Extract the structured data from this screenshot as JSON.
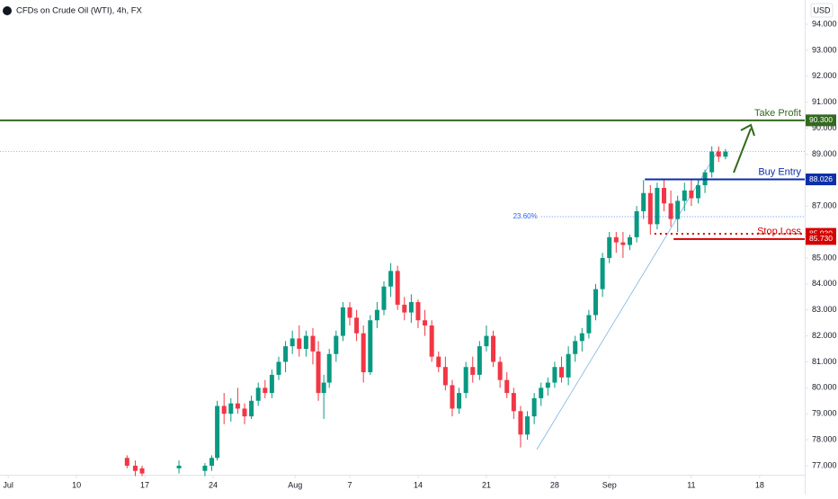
{
  "chart_data": {
    "type": "candlestick",
    "title": "CFDs on Crude Oil (WTI), 4h, FX",
    "currency": "USD",
    "up_color": "#089981",
    "down_color": "#f23645",
    "xlim": [
      -0.6,
      58.3
    ],
    "ylim": [
      76.6,
      94.5
    ],
    "xticks": [
      {
        "value": 0,
        "label": "Jul"
      },
      {
        "value": 5,
        "label": "10"
      },
      {
        "value": 10,
        "label": "17"
      },
      {
        "value": 15,
        "label": "24"
      },
      {
        "value": 21,
        "label": "Aug"
      },
      {
        "value": 25,
        "label": "7"
      },
      {
        "value": 30,
        "label": "14"
      },
      {
        "value": 35,
        "label": "21"
      },
      {
        "value": 40,
        "label": "28"
      },
      {
        "value": 44,
        "label": "Sep"
      },
      {
        "value": 50,
        "label": "11"
      },
      {
        "value": 55,
        "label": "18"
      }
    ],
    "yticks": [
      {
        "value": 77,
        "label": "77.000"
      },
      {
        "value": 78,
        "label": "78.000"
      },
      {
        "value": 79,
        "label": "79.000"
      },
      {
        "value": 80,
        "label": "80.000"
      },
      {
        "value": 81,
        "label": "81.000"
      },
      {
        "value": 82,
        "label": "82.000"
      },
      {
        "value": 83,
        "label": "83.000"
      },
      {
        "value": 84,
        "label": "84.000"
      },
      {
        "value": 85,
        "label": "85.000"
      },
      {
        "value": 87,
        "label": "87.000"
      },
      {
        "value": 89,
        "label": "89.000"
      },
      {
        "value": 90,
        "label": "90.000"
      },
      {
        "value": 91,
        "label": "91.000"
      },
      {
        "value": 92,
        "label": "92.000"
      },
      {
        "value": 93,
        "label": "93.000"
      },
      {
        "value": 94,
        "label": "94.000"
      }
    ],
    "candles": [
      [
        8.7,
        77.3,
        77.4,
        76.9,
        77.0
      ],
      [
        9.3,
        77.0,
        77.2,
        76.6,
        76.8
      ],
      [
        9.8,
        76.9,
        77.0,
        76.6,
        76.7
      ],
      [
        12.5,
        76.9,
        77.2,
        76.7,
        77.0
      ],
      [
        14.4,
        76.8,
        77.1,
        76.6,
        77.0
      ],
      [
        14.9,
        77.0,
        77.4,
        76.8,
        77.3
      ],
      [
        15.3,
        77.3,
        79.5,
        77.2,
        79.3
      ],
      [
        15.8,
        79.3,
        79.8,
        78.6,
        79.0
      ],
      [
        16.3,
        79.0,
        79.6,
        78.7,
        79.4
      ],
      [
        16.8,
        79.4,
        80.0,
        79.0,
        79.2
      ],
      [
        17.3,
        79.2,
        79.4,
        78.6,
        78.9
      ],
      [
        17.8,
        78.9,
        79.7,
        78.8,
        79.5
      ],
      [
        18.3,
        79.5,
        80.2,
        79.3,
        80.0
      ],
      [
        18.8,
        80.0,
        80.3,
        79.6,
        79.8
      ],
      [
        19.3,
        79.8,
        80.7,
        79.6,
        80.5
      ],
      [
        19.8,
        80.5,
        81.2,
        80.3,
        81.0
      ],
      [
        20.3,
        81.0,
        81.8,
        80.6,
        81.6
      ],
      [
        20.8,
        81.6,
        82.2,
        81.3,
        81.9
      ],
      [
        21.3,
        81.9,
        82.4,
        81.2,
        81.5
      ],
      [
        21.8,
        81.5,
        82.2,
        81.2,
        82.0
      ],
      [
        22.3,
        82.0,
        82.3,
        80.9,
        81.4
      ],
      [
        22.7,
        81.4,
        81.8,
        79.5,
        79.8
      ],
      [
        23.1,
        79.8,
        80.5,
        78.8,
        80.2
      ],
      [
        23.5,
        80.2,
        81.5,
        80.0,
        81.3
      ],
      [
        24.0,
        81.3,
        82.2,
        81.0,
        82.0
      ],
      [
        24.5,
        82.0,
        83.3,
        81.8,
        83.1
      ],
      [
        25.0,
        83.1,
        83.3,
        82.4,
        82.7
      ],
      [
        25.5,
        82.7,
        83.0,
        81.8,
        82.1
      ],
      [
        26.0,
        82.1,
        82.4,
        80.2,
        80.6
      ],
      [
        26.5,
        80.6,
        82.8,
        80.5,
        82.6
      ],
      [
        27.0,
        82.6,
        83.3,
        82.3,
        83.0
      ],
      [
        27.5,
        83.0,
        84.1,
        82.8,
        83.9
      ],
      [
        28.0,
        83.9,
        84.8,
        83.5,
        84.5
      ],
      [
        28.5,
        84.5,
        84.7,
        83.0,
        83.2
      ],
      [
        29.0,
        83.2,
        83.5,
        82.6,
        82.9
      ],
      [
        29.5,
        82.9,
        83.6,
        82.5,
        83.3
      ],
      [
        30.0,
        83.3,
        83.4,
        82.3,
        82.6
      ],
      [
        30.5,
        82.6,
        83.0,
        82.0,
        82.4
      ],
      [
        31.0,
        82.4,
        82.6,
        81.0,
        81.2
      ],
      [
        31.5,
        81.2,
        81.4,
        80.6,
        80.8
      ],
      [
        32.0,
        80.8,
        81.2,
        79.9,
        80.1
      ],
      [
        32.5,
        80.1,
        80.3,
        78.9,
        79.2
      ],
      [
        33.0,
        79.2,
        80.0,
        79.0,
        79.8
      ],
      [
        33.5,
        79.8,
        81.0,
        79.6,
        80.8
      ],
      [
        34.0,
        80.8,
        81.2,
        80.2,
        80.5
      ],
      [
        34.5,
        80.5,
        81.8,
        80.3,
        81.6
      ],
      [
        35.0,
        81.6,
        82.4,
        81.4,
        82.0
      ],
      [
        35.5,
        82.0,
        82.2,
        80.8,
        81.0
      ],
      [
        36.0,
        81.0,
        81.2,
        80.0,
        80.3
      ],
      [
        36.5,
        80.3,
        80.6,
        79.6,
        79.8
      ],
      [
        37.0,
        79.8,
        80.0,
        78.8,
        79.1
      ],
      [
        37.5,
        79.1,
        79.3,
        77.7,
        78.2
      ],
      [
        38.0,
        78.2,
        79.1,
        78.0,
        78.9
      ],
      [
        38.5,
        78.9,
        79.8,
        78.6,
        79.6
      ],
      [
        39.0,
        79.6,
        80.2,
        79.3,
        80.0
      ],
      [
        39.5,
        80.0,
        80.4,
        79.7,
        80.2
      ],
      [
        40.0,
        80.2,
        81.0,
        80.0,
        80.8
      ],
      [
        40.5,
        80.8,
        81.2,
        80.2,
        80.4
      ],
      [
        41.0,
        80.4,
        81.6,
        80.1,
        81.3
      ],
      [
        41.5,
        81.3,
        82.0,
        81.0,
        81.8
      ],
      [
        42.0,
        81.8,
        82.3,
        81.4,
        82.1
      ],
      [
        42.5,
        82.1,
        83.0,
        81.9,
        82.8
      ],
      [
        43.0,
        82.8,
        84.0,
        82.6,
        83.8
      ],
      [
        43.5,
        83.8,
        85.2,
        83.5,
        85.0
      ],
      [
        44.0,
        85.0,
        86.0,
        84.8,
        85.8
      ],
      [
        44.5,
        85.8,
        86.0,
        85.2,
        85.6
      ],
      [
        45.0,
        85.6,
        86.0,
        85.0,
        85.5
      ],
      [
        45.5,
        85.5,
        85.9,
        85.3,
        85.8
      ],
      [
        46.0,
        85.8,
        87.0,
        85.6,
        86.8
      ],
      [
        46.5,
        86.8,
        88.0,
        86.5,
        87.5
      ],
      [
        47.0,
        87.5,
        87.8,
        85.9,
        86.3
      ],
      [
        47.5,
        86.3,
        87.9,
        86.1,
        87.7
      ],
      [
        48.0,
        87.7,
        88.0,
        86.8,
        87.1
      ],
      [
        48.5,
        87.1,
        87.6,
        86.2,
        86.5
      ],
      [
        49.0,
        86.5,
        87.4,
        86.0,
        87.2
      ],
      [
        49.5,
        87.2,
        87.9,
        86.8,
        87.6
      ],
      [
        50.0,
        87.6,
        88.0,
        87.0,
        87.3
      ],
      [
        50.5,
        87.3,
        88.0,
        87.1,
        87.8
      ],
      [
        51.0,
        87.8,
        88.4,
        87.5,
        88.3
      ],
      [
        51.5,
        88.3,
        89.3,
        88.1,
        89.1
      ],
      [
        52.0,
        89.1,
        89.3,
        88.7,
        88.9
      ],
      [
        52.5,
        88.9,
        89.2,
        88.8,
        89.1
      ]
    ],
    "levels": [
      {
        "name": "Take Profit",
        "value": 90.3,
        "value_label": "90.300",
        "color": "#33691e",
        "start": -0.6,
        "style": "solid"
      },
      {
        "name": "Buy Entry",
        "value": 88.026,
        "value_label": "88.026",
        "color": "#0d2fa8",
        "start": 46.6,
        "style": "solid"
      },
      {
        "value": 85.93,
        "value_label": "85.930",
        "color": "#d50000",
        "start": 47.3,
        "style": "dotted"
      },
      {
        "name": "Stop Loss",
        "value": 85.73,
        "value_label": "85.730",
        "color": "#d50000",
        "start": 48.7,
        "style": "solid"
      }
    ],
    "fib": {
      "label": "23.60%",
      "value": 86.59,
      "start": 39.0,
      "color": "#2962ff"
    }
  }
}
